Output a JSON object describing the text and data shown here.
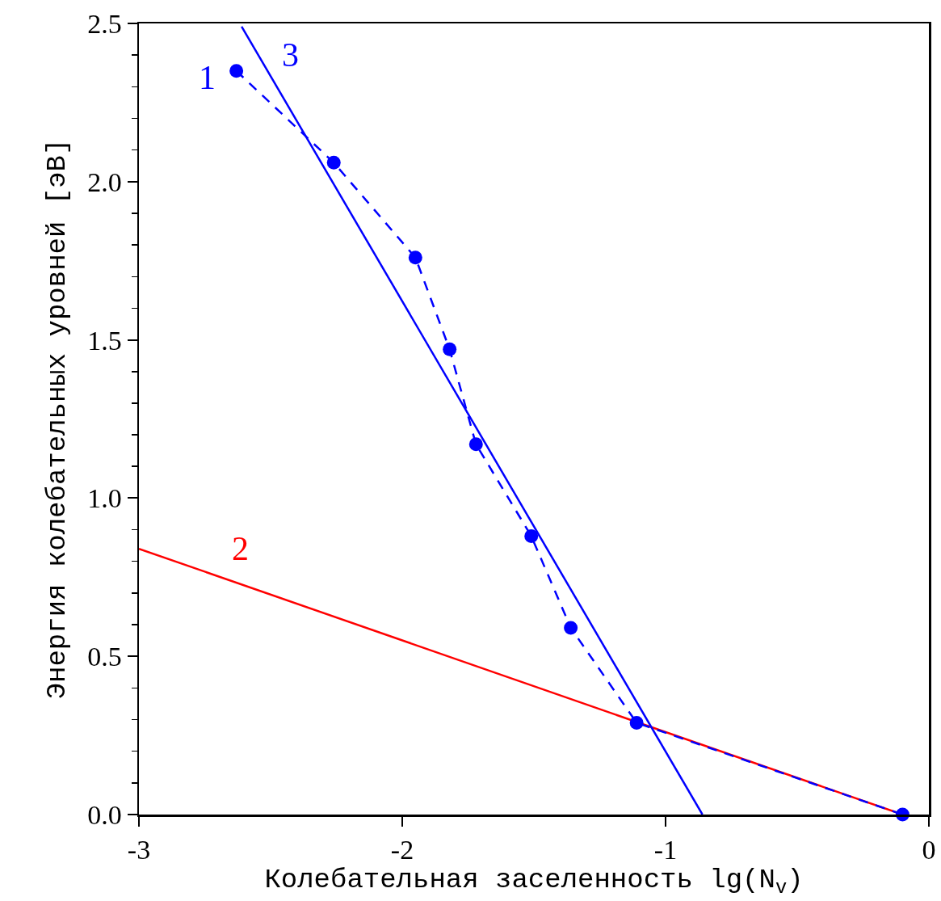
{
  "chart_data": {
    "type": "line",
    "xlabel": "Колебательная заселенность lg(N$_{v}$)",
    "ylabel": "Энергия колебательных уровней [эВ]",
    "xlim": [
      -3,
      0
    ],
    "xticks": [
      -3,
      -2,
      -1,
      0
    ],
    "ylim": [
      0,
      2.5
    ],
    "yticks": [
      {
        "value": 0,
        "label": "0.0"
      },
      {
        "value": 0.5,
        "label": "0.5"
      },
      {
        "value": 1,
        "label": "1.0"
      },
      {
        "value": 1.5,
        "label": "1.5"
      },
      {
        "value": 2,
        "label": "2.0"
      },
      {
        "value": 2.5,
        "label": "2.5"
      }
    ],
    "grid": false,
    "legend": false,
    "series": [
      {
        "name": "2",
        "color": "#ff0000",
        "x": [
          -3,
          -0.1
        ],
        "values": [
          0.84,
          0
        ],
        "line_style": "solid",
        "marker": "none"
      },
      {
        "name": "3",
        "color": "#0000ff",
        "x": [
          -2.61,
          -0.86
        ],
        "values": [
          2.49,
          0.0
        ],
        "line_style": "solid",
        "marker": "none"
      },
      {
        "name": "1",
        "color": "#0000ff",
        "x": [
          -2.63,
          -2.26,
          -1.95,
          -1.82,
          -1.72,
          -1.51,
          -1.36,
          -1.11,
          -0.1
        ],
        "values": [
          2.35,
          2.06,
          1.76,
          1.47,
          1.17,
          0.88,
          0.59,
          0.29,
          0
        ],
        "line_style": "dashed",
        "marker": "circle"
      }
    ]
  }
}
